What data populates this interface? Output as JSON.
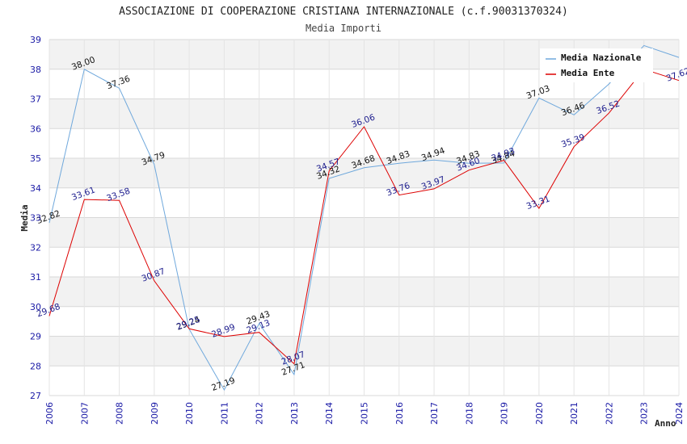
{
  "chart_data": {
    "type": "line",
    "title": "ASSOCIAZIONE DI COOPERAZIONE CRISTIANA INTERNAZIONALE (c.f.90031370324)",
    "subtitle": "Media Importi",
    "xlabel": "Anno",
    "ylabel": "Media",
    "ylim": [
      27,
      39
    ],
    "yticks": [
      "27",
      "28",
      "29",
      "30",
      "31",
      "32",
      "33",
      "34",
      "35",
      "36",
      "37",
      "38",
      "39"
    ],
    "categories": [
      "2006",
      "2007",
      "2008",
      "2009",
      "2010",
      "2011",
      "2012",
      "2013",
      "2014",
      "2015",
      "2016",
      "2017",
      "2018",
      "2019",
      "2020",
      "2021",
      "2022",
      "2023",
      "2024"
    ],
    "grid": true,
    "legend_position": "top-right",
    "series": [
      {
        "name": "Media Nazionale",
        "color": "#6fa8dc",
        "label_color": "#111111",
        "values": [
          32.82,
          38.0,
          37.36,
          34.79,
          29.24,
          27.19,
          29.43,
          27.71,
          34.32,
          34.68,
          34.83,
          34.94,
          34.83,
          34.84,
          37.03,
          36.46,
          37.5,
          38.8,
          38.4
        ],
        "labels": [
          "32.82",
          "38.00",
          "37.36",
          "34.79",
          "29.24",
          "27.19",
          "29.43",
          "27.71",
          "34.32",
          "34.68",
          "34.83",
          "34.94",
          "34.83",
          "34.84",
          "37.03",
          "36.46",
          "",
          "",
          ""
        ]
      },
      {
        "name": "Media Ente",
        "color": "#dd0000",
        "label_color": "#1a1a8c",
        "values": [
          29.68,
          33.61,
          33.58,
          30.87,
          29.25,
          28.99,
          29.13,
          28.07,
          34.57,
          36.06,
          33.76,
          33.97,
          34.6,
          34.93,
          33.31,
          35.39,
          36.52,
          38.0,
          37.62
        ],
        "labels": [
          "29.68",
          "33.61",
          "33.58",
          "30.87",
          "29.25",
          "28.99",
          "29.13",
          "28.07",
          "34.57",
          "36.06",
          "33.76",
          "33.97",
          "34.60",
          "34.93",
          "33.31",
          "35.39",
          "36.52",
          "",
          "37.62"
        ]
      }
    ]
  }
}
